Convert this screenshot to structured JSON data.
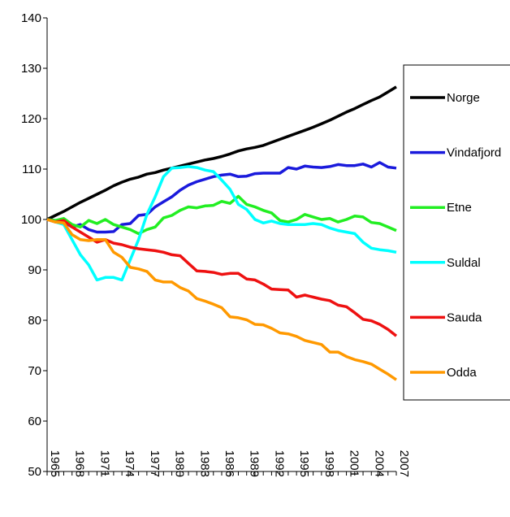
{
  "chart_data": {
    "type": "line",
    "x": [
      1965,
      1966,
      1967,
      1968,
      1969,
      1970,
      1971,
      1972,
      1973,
      1974,
      1975,
      1976,
      1977,
      1978,
      1979,
      1980,
      1981,
      1982,
      1983,
      1984,
      1985,
      1986,
      1987,
      1988,
      1989,
      1990,
      1991,
      1992,
      1993,
      1994,
      1995,
      1996,
      1997,
      1998,
      1999,
      2000,
      2001,
      2002,
      2003,
      2004,
      2005,
      2006,
      2007
    ],
    "xlim": [
      1965,
      2007
    ],
    "xticks": [
      1965,
      1968,
      1971,
      1974,
      1977,
      1980,
      1983,
      1986,
      1989,
      1992,
      1995,
      1998,
      2001,
      2004,
      2007
    ],
    "ylim": [
      50,
      140
    ],
    "yticks": [
      50,
      60,
      70,
      80,
      90,
      100,
      110,
      120,
      130,
      140
    ],
    "grid": false,
    "legend": "right",
    "series": [
      {
        "name": "Norge",
        "color": "#000000",
        "values": [
          100,
          100.8,
          101.6,
          102.5,
          103.4,
          104.2,
          105,
          105.8,
          106.7,
          107.4,
          108,
          108.4,
          109,
          109.3,
          109.8,
          110.2,
          110.6,
          111,
          111.4,
          111.8,
          112.1,
          112.5,
          113,
          113.6,
          114,
          114.3,
          114.7,
          115.3,
          115.9,
          116.5,
          117.1,
          117.7,
          118.3,
          119,
          119.7,
          120.5,
          121.3,
          122,
          122.8,
          123.6,
          124.3,
          125.3,
          126.3
        ]
      },
      {
        "name": "Vindafjord",
        "color": "#1a1adc",
        "values": [
          100,
          99.8,
          99.5,
          98.5,
          99,
          98,
          97.5,
          97.5,
          97.6,
          99,
          99.2,
          100.8,
          101,
          102.5,
          103.5,
          104.5,
          105.8,
          106.8,
          107.5,
          108,
          108.5,
          108.8,
          109,
          108.5,
          108.6,
          109.1,
          109.2,
          109.2,
          109.2,
          110.3,
          110,
          110.6,
          110.4,
          110.3,
          110.5,
          110.9,
          110.7,
          110.7,
          111,
          110.4,
          111.3,
          110.4,
          110.2
        ]
      },
      {
        "name": "Etne",
        "color": "#22ee22",
        "values": [
          100,
          99.8,
          100.2,
          99,
          98.5,
          99.8,
          99.2,
          100,
          99,
          98.5,
          98,
          97.2,
          98,
          98.5,
          100.3,
          100.8,
          101.8,
          102.5,
          102.3,
          102.7,
          102.8,
          103.6,
          103.2,
          104.6,
          103,
          102.5,
          101.8,
          101.3,
          99.8,
          99.5,
          100,
          101,
          100.5,
          100,
          100.2,
          99.5,
          100,
          100.7,
          100.5,
          99.4,
          99.2,
          98.5,
          97.8
        ]
      },
      {
        "name": "Suldal",
        "color": "#00ffff",
        "values": [
          100,
          99.5,
          99,
          96,
          93,
          91,
          88,
          88.5,
          88.5,
          88,
          92,
          96,
          101,
          104.5,
          108.5,
          110.2,
          110.3,
          110.5,
          110.3,
          109.8,
          109.5,
          107.8,
          106,
          103,
          102,
          100,
          99.3,
          99.7,
          99.2,
          99,
          99,
          99,
          99.2,
          99,
          98.3,
          97.8,
          97.5,
          97.2,
          95.5,
          94.3,
          94,
          93.8,
          93.5
        ]
      },
      {
        "name": "Sauda",
        "color": "#ee1111",
        "values": [
          100,
          99.5,
          99.8,
          98.5,
          97.5,
          96.5,
          95.5,
          96,
          95.3,
          95,
          94.5,
          94.2,
          94,
          93.8,
          93.5,
          93,
          92.8,
          91.3,
          89.8,
          89.7,
          89.5,
          89.1,
          89.3,
          89.3,
          88.2,
          88,
          87.2,
          86.2,
          86.1,
          86,
          84.6,
          85,
          84.6,
          84.2,
          83.9,
          83,
          82.7,
          81.5,
          80.2,
          79.9,
          79.2,
          78.2,
          76.9
        ]
      },
      {
        "name": "Odda",
        "color": "#ff9900",
        "values": [
          100,
          99.5,
          99.3,
          97,
          96,
          95.8,
          96,
          96,
          93.5,
          92.5,
          90.5,
          90.2,
          89.7,
          88,
          87.6,
          87.6,
          86.5,
          85.8,
          84.3,
          83.8,
          83.2,
          82.5,
          80.7,
          80.5,
          80.1,
          79.2,
          79.1,
          78.4,
          77.5,
          77.3,
          76.8,
          76,
          75.6,
          75.2,
          73.7,
          73.7,
          72.8,
          72.2,
          71.8,
          71.3,
          70.3,
          69.3,
          68.2
        ]
      }
    ]
  }
}
